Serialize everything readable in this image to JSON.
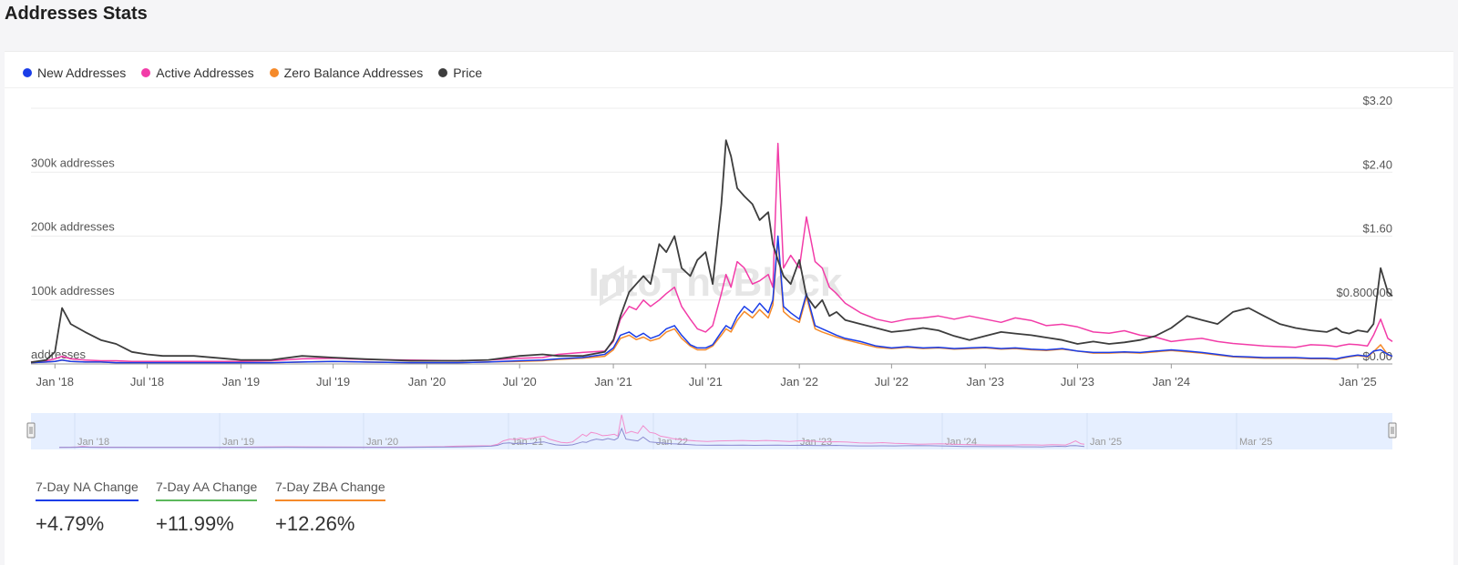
{
  "page": {
    "title": "Addresses Stats"
  },
  "legend": [
    {
      "label": "New Addresses",
      "color": "#1a3de8",
      "icon": "circle-dot-icon"
    },
    {
      "label": "Active Addresses",
      "color": "#f23ca8",
      "icon": "circle-dot-icon"
    },
    {
      "label": "Zero Balance Addresses",
      "color": "#f58a2a",
      "icon": "circle-dot-icon"
    },
    {
      "label": "Price",
      "color": "#3d3d3d",
      "icon": "circle-dot-icon"
    }
  ],
  "watermark": "IntoTheBlock",
  "navigator": {
    "labels": [
      "Jan '18",
      "Jan '19",
      "Jan '20",
      "Jan '21",
      "Jan '22",
      "Jan '23",
      "Jan '24",
      "Jan '25",
      "Mar '25"
    ],
    "handle_icon": "drag-handle-icon"
  },
  "stats": [
    {
      "label": "7-Day NA Change",
      "value": "+4.79%",
      "color": "#1a3de8"
    },
    {
      "label": "7-Day AA Change",
      "value": "+11.99%",
      "color": "#5cb85c"
    },
    {
      "label": "7-Day ZBA Change",
      "value": "+12.26%",
      "color": "#f58a2a"
    }
  ],
  "chart_data": {
    "type": "line",
    "x_tick_labels": [
      "Jan '18",
      "Jul '18",
      "Jan '19",
      "Jul '19",
      "Jan '20",
      "Jul '20",
      "Jan '21",
      "Jul '21",
      "Jan '22",
      "Jul '22",
      "Jan '23",
      "Jul '23",
      "Jan '24",
      "Jan '25"
    ],
    "left_axis": {
      "ticks": [
        0,
        100000,
        200000,
        300000
      ],
      "tick_labels": [
        "addresses",
        "100k addresses",
        "200k addresses",
        "300k addresses"
      ],
      "ylim": [
        0,
        400000
      ]
    },
    "right_axis": {
      "ticks": [
        0,
        0.8,
        1.6,
        2.4,
        3.2
      ],
      "tick_labels": [
        "$0.00",
        "$0.800000",
        "$1.60",
        "$2.40",
        "$3.20"
      ],
      "ylim": [
        0,
        3.2
      ]
    },
    "grid": true,
    "legend_position": "top-left",
    "x": [
      "2017-11-15",
      "2017-12-15",
      "2018-01-01",
      "2018-01-15",
      "2018-02-01",
      "2018-03-01",
      "2018-04-01",
      "2018-05-01",
      "2018-06-01",
      "2018-07-01",
      "2018-08-01",
      "2018-10-01",
      "2019-01-01",
      "2019-03-01",
      "2019-05-01",
      "2019-07-01",
      "2019-09-01",
      "2019-12-01",
      "2020-03-01",
      "2020-05-01",
      "2020-07-01",
      "2020-08-15",
      "2020-09-15",
      "2020-11-01",
      "2020-12-15",
      "2021-01-01",
      "2021-01-15",
      "2021-02-01",
      "2021-02-15",
      "2021-03-01",
      "2021-03-15",
      "2021-04-01",
      "2021-04-15",
      "2021-05-01",
      "2021-05-15",
      "2021-06-01",
      "2021-06-15",
      "2021-07-01",
      "2021-07-15",
      "2021-08-01",
      "2021-08-10",
      "2021-08-20",
      "2021-09-01",
      "2021-09-15",
      "2021-10-01",
      "2021-10-15",
      "2021-11-01",
      "2021-11-10",
      "2021-11-20",
      "2021-12-01",
      "2021-12-15",
      "2022-01-01",
      "2022-01-15",
      "2022-02-01",
      "2022-02-15",
      "2022-03-01",
      "2022-03-15",
      "2022-04-01",
      "2022-05-01",
      "2022-06-01",
      "2022-07-01",
      "2022-08-01",
      "2022-09-01",
      "2022-10-01",
      "2022-11-01",
      "2022-12-01",
      "2023-01-01",
      "2023-02-01",
      "2023-03-01",
      "2023-04-01",
      "2023-05-01",
      "2023-06-01",
      "2023-07-01",
      "2023-08-01",
      "2023-09-01",
      "2023-10-01",
      "2023-11-01",
      "2023-12-01",
      "2024-01-01",
      "2024-02-01",
      "2024-03-01",
      "2024-04-01",
      "2024-05-01",
      "2024-06-01",
      "2024-07-01",
      "2024-08-01",
      "2024-09-01",
      "2024-10-01",
      "2024-11-01",
      "2024-11-20",
      "2024-12-01",
      "2024-12-15",
      "2025-01-01",
      "2025-01-20",
      "2025-02-01",
      "2025-02-15",
      "2025-03-01",
      "2025-03-10"
    ],
    "series": [
      {
        "name": "New Addresses",
        "axis": "left",
        "color": "#1a3de8",
        "values": [
          2000,
          3000,
          4000,
          6000,
          4000,
          3000,
          3000,
          2000,
          2000,
          2000,
          2000,
          2000,
          2000,
          2000,
          3000,
          4000,
          3000,
          2000,
          2000,
          3000,
          5000,
          6000,
          8000,
          10000,
          15000,
          25000,
          45000,
          50000,
          42000,
          48000,
          40000,
          45000,
          55000,
          60000,
          45000,
          30000,
          25000,
          25000,
          30000,
          50000,
          60000,
          55000,
          75000,
          90000,
          80000,
          95000,
          80000,
          100000,
          200000,
          90000,
          80000,
          70000,
          110000,
          60000,
          55000,
          50000,
          45000,
          40000,
          35000,
          28000,
          25000,
          27000,
          25000,
          26000,
          24000,
          25000,
          26000,
          24000,
          25000,
          23000,
          22000,
          24000,
          20000,
          18000,
          18000,
          19000,
          18000,
          20000,
          22000,
          20000,
          18000,
          15000,
          12000,
          11000,
          10000,
          10000,
          10000,
          9000,
          9000,
          8000,
          10000,
          12000,
          14000,
          12000,
          20000,
          22000,
          15000,
          12000
        ]
      },
      {
        "name": "Active Addresses",
        "axis": "left",
        "color": "#f23ca8",
        "values": [
          3000,
          5000,
          8000,
          12000,
          8000,
          6000,
          5000,
          5000,
          4000,
          4000,
          4000,
          4000,
          4000,
          5000,
          8000,
          9000,
          7000,
          6000,
          5000,
          6000,
          9000,
          10000,
          15000,
          18000,
          20000,
          35000,
          70000,
          90000,
          85000,
          100000,
          90000,
          100000,
          110000,
          120000,
          90000,
          70000,
          55000,
          50000,
          60000,
          110000,
          140000,
          120000,
          160000,
          150000,
          125000,
          130000,
          140000,
          120000,
          345000,
          150000,
          170000,
          150000,
          230000,
          160000,
          150000,
          120000,
          110000,
          95000,
          80000,
          70000,
          65000,
          70000,
          72000,
          75000,
          70000,
          75000,
          70000,
          65000,
          72000,
          68000,
          60000,
          62000,
          58000,
          50000,
          48000,
          52000,
          45000,
          42000,
          35000,
          38000,
          40000,
          35000,
          32000,
          30000,
          28000,
          27000,
          26000,
          30000,
          29000,
          27000,
          29000,
          31000,
          30000,
          28000,
          45000,
          70000,
          40000,
          35000
        ]
      },
      {
        "name": "Zero Balance Addresses",
        "axis": "left",
        "color": "#f58a2a",
        "values": [
          2000,
          3000,
          4000,
          6000,
          4000,
          3000,
          3000,
          2000,
          2000,
          2000,
          2000,
          2000,
          2000,
          2000,
          3000,
          4000,
          3000,
          2000,
          2000,
          3000,
          4000,
          5000,
          7000,
          9000,
          12000,
          22000,
          40000,
          45000,
          38000,
          42000,
          36000,
          40000,
          50000,
          55000,
          40000,
          28000,
          22000,
          22000,
          28000,
          45000,
          55000,
          50000,
          68000,
          82000,
          72000,
          85000,
          72000,
          92000,
          195000,
          82000,
          72000,
          65000,
          105000,
          55000,
          50000,
          46000,
          42000,
          38000,
          32000,
          26000,
          24000,
          26000,
          24000,
          25000,
          23000,
          24000,
          25000,
          23000,
          24000,
          22000,
          21000,
          23000,
          20000,
          17000,
          17000,
          18000,
          17000,
          19000,
          21000,
          19000,
          17000,
          14000,
          11000,
          10000,
          9000,
          9000,
          9000,
          8000,
          8000,
          7000,
          9000,
          11000,
          13000,
          11000,
          19000,
          30000,
          14000,
          12000
        ]
      },
      {
        "name": "Price",
        "axis": "right",
        "color": "#3d3d3d",
        "values": [
          0.02,
          0.05,
          0.15,
          0.7,
          0.5,
          0.4,
          0.3,
          0.25,
          0.15,
          0.12,
          0.1,
          0.1,
          0.05,
          0.05,
          0.1,
          0.08,
          0.06,
          0.04,
          0.04,
          0.05,
          0.1,
          0.12,
          0.1,
          0.1,
          0.15,
          0.3,
          0.6,
          0.9,
          1.0,
          1.1,
          1.0,
          1.5,
          1.4,
          1.6,
          1.2,
          1.1,
          1.3,
          1.4,
          1.0,
          2.0,
          2.8,
          2.6,
          2.2,
          2.1,
          2.0,
          1.8,
          1.9,
          1.5,
          1.3,
          1.1,
          1.0,
          1.3,
          0.85,
          0.7,
          0.8,
          0.6,
          0.65,
          0.55,
          0.5,
          0.45,
          0.4,
          0.42,
          0.45,
          0.42,
          0.35,
          0.3,
          0.35,
          0.4,
          0.38,
          0.36,
          0.33,
          0.3,
          0.25,
          0.28,
          0.25,
          0.27,
          0.3,
          0.35,
          0.45,
          0.6,
          0.55,
          0.5,
          0.65,
          0.7,
          0.6,
          0.5,
          0.45,
          0.42,
          0.4,
          0.45,
          0.4,
          0.38,
          0.42,
          0.4,
          0.5,
          1.2,
          0.9,
          0.85
        ]
      }
    ]
  }
}
